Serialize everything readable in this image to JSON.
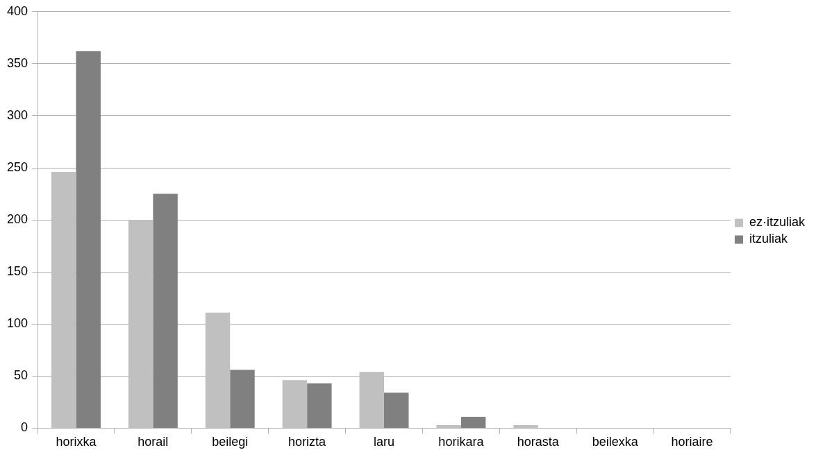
{
  "chart_data": {
    "type": "bar",
    "categories": [
      "horixka",
      "horail",
      "beilegi",
      "horizta",
      "laru",
      "horikara",
      "horasta",
      "beilexka",
      "horiaire"
    ],
    "series": [
      {
        "name": "ez·itzuliak",
        "color": "#c0c0c0",
        "values": [
          246,
          200,
          111,
          46,
          54,
          3,
          3,
          null,
          0
        ]
      },
      {
        "name": "itzuliak",
        "color": "#808080",
        "values": [
          362,
          225,
          56,
          43,
          34,
          11,
          null,
          null,
          null
        ]
      }
    ],
    "ylim": [
      0,
      400
    ],
    "yticks": [
      0,
      50,
      100,
      150,
      200,
      250,
      300,
      350,
      400
    ],
    "grid": "y",
    "legend": "right"
  }
}
